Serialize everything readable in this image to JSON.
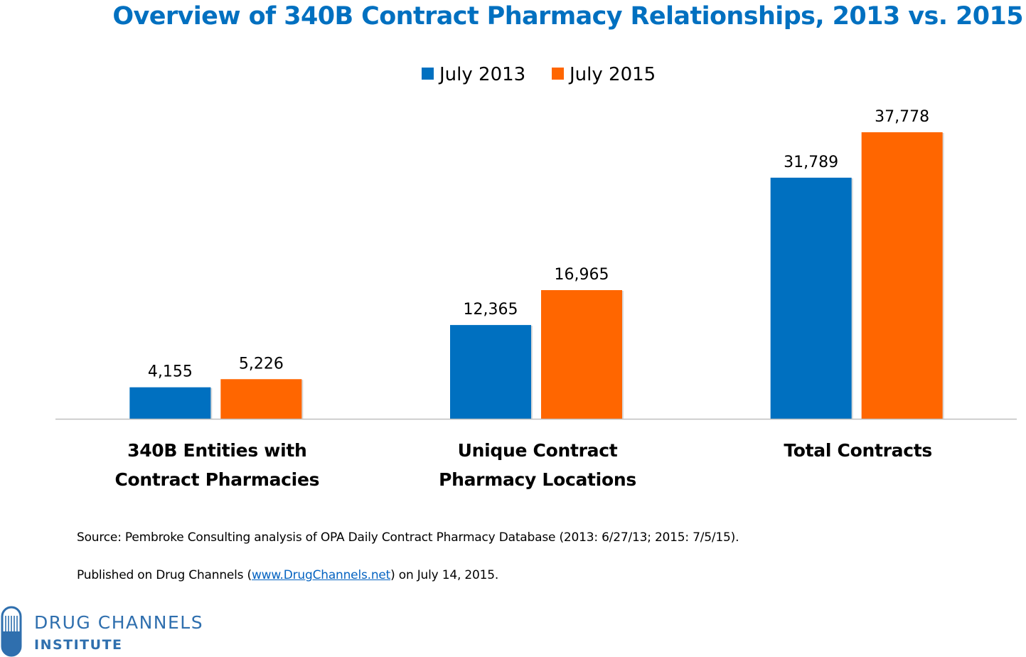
{
  "colors": {
    "title": "#0070c0",
    "series_2013": "#0070c0",
    "series_2015": "#ff6600",
    "axis": "#bfbfbf",
    "logo": "#2f6fae"
  },
  "chart_data": {
    "type": "bar",
    "title": "Overview of 340B Contract Pharmacy Relationships, 2013 vs. 2015",
    "categories": [
      [
        "340B Entities with",
        "Contract Pharmacies"
      ],
      [
        "Unique Contract",
        "Pharmacy Locations"
      ],
      [
        "Total Contracts"
      ]
    ],
    "series": [
      {
        "name": "July 2013",
        "values": [
          4155,
          12365,
          31789
        ],
        "labels": [
          "4,155",
          "12,365",
          "31,789"
        ],
        "color": "#0070c0"
      },
      {
        "name": "July 2015",
        "values": [
          5226,
          16965,
          37778
        ],
        "labels": [
          "5,226",
          "16,965",
          "37,778"
        ],
        "color": "#ff6600"
      }
    ],
    "ylim": [
      0,
      40000
    ],
    "grid": false,
    "legend_position": "top-center",
    "data_labels": true
  },
  "footnotes": {
    "source": "Source: Pembroke Consulting analysis of OPA Daily Contract Pharmacy Database (2013: 6/27/13; 2015: 7/5/15).",
    "published_prefix": "Published on Drug Channels (",
    "published_link": "www.DrugChannels.net",
    "published_suffix": ") on July 14, 2015."
  },
  "logo": {
    "line1": "DRUG CHANNELS",
    "line2": "INSTITUTE",
    "icon": "pill-capsule-icon"
  }
}
